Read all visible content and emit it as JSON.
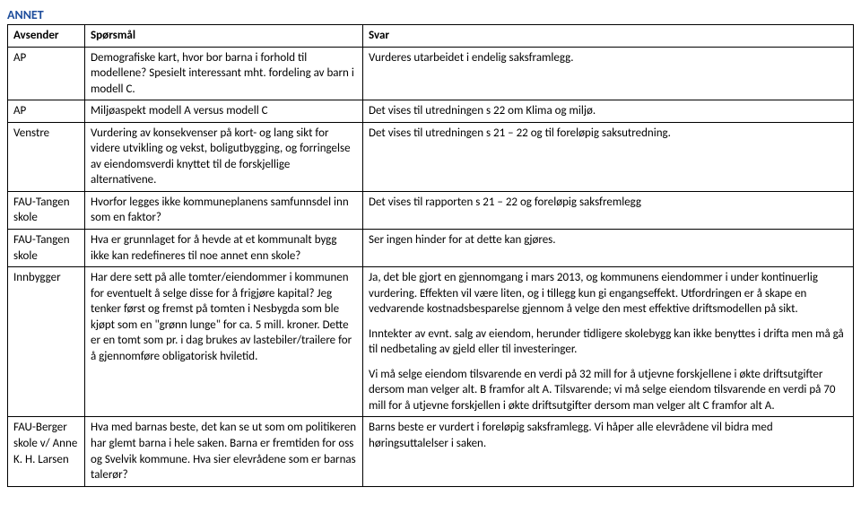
{
  "section_title": "ANNET",
  "columns": [
    "Avsender",
    "Spørsmål",
    "Svar"
  ],
  "rows": [
    {
      "sender": "AP",
      "question": [
        "Demografiske kart, hvor bor barna i forhold til modellene? Spesielt interessant mht. fordeling av barn i modell C."
      ],
      "answer": [
        "Vurderes utarbeidet i endelig saksframlegg."
      ]
    },
    {
      "sender": "AP",
      "question": [
        "Miljøaspekt modell A versus modell C"
      ],
      "answer": [
        "Det vises til utredningen s 22 om Klima og miljø."
      ]
    },
    {
      "sender": "Venstre",
      "question": [
        "Vurdering av konsekvenser på kort- og lang sikt for videre utvikling og vekst, boligutbygging, og forringelse av eiendomsverdi knyttet til de forskjellige alternativene."
      ],
      "answer": [
        "Det vises til utredningen s 21 – 22 og til foreløpig saksutredning."
      ]
    },
    {
      "sender": "FAU-Tangen skole",
      "question": [
        "Hvorfor legges ikke kommuneplanens samfunnsdel inn som en faktor?"
      ],
      "answer": [
        "Det vises til rapporten s 21 – 22 og foreløpig saksfremlegg"
      ]
    },
    {
      "sender": "FAU-Tangen skole",
      "question": [
        "Hva er grunnlaget for å hevde at et kommunalt bygg ikke kan redefineres til noe annet enn skole?"
      ],
      "answer": [
        "Ser ingen hinder for at dette kan gjøres."
      ]
    },
    {
      "sender": "Innbygger",
      "question": [
        "Har dere sett på alle tomter/eiendommer i kommunen for eventuelt å selge disse for å frigjøre kapital? Jeg tenker først og fremst på tomten i Nesbygda som ble kjøpt som en \"grønn lunge\" for ca. 5 mill. kroner. Dette er en tomt som pr. i dag brukes av lastebiler/trailere for å gjennomføre obligatorisk hviletid."
      ],
      "answer": [
        "Ja, det ble gjort en gjennomgang i mars 2013, og kommunens eiendommer i under kontinuerlig vurdering. Effekten vil være liten, og i tillegg kun gi engangseffekt. Utfordringen er å skape en vedvarende kostnadsbesparelse gjennom å velge den mest effektive driftsmodellen på sikt.",
        "Inntekter av evnt. salg av eiendom, herunder tidligere skolebygg kan ikke benyttes i drifta men må gå til nedbetaling av gjeld eller til investeringer.",
        "Vi må selge eiendom tilsvarende en verdi på 32 mill for å utjevne forskjellene i økte driftsutgifter dersom man velger alt. B framfor alt A. Tilsvarende; vi må selge eiendom tilsvarende en verdi på 70 mill for å utjevne forskjellen i økte driftsutgifter dersom man velger alt C framfor alt A."
      ]
    },
    {
      "sender": "FAU-Berger skole v/ Anne K. H. Larsen",
      "question": [
        "Hva med barnas beste, det kan se ut som om politikeren har glemt barna i hele saken. Barna er fremtiden for oss og Svelvik kommune. Hva sier elevrådene som er barnas talerør?"
      ],
      "answer": [
        "Barns beste er vurdert i foreløpig saksframlegg. Vi håper alle elevrådene vil bidra med høringsuttalelser i saken."
      ]
    }
  ]
}
